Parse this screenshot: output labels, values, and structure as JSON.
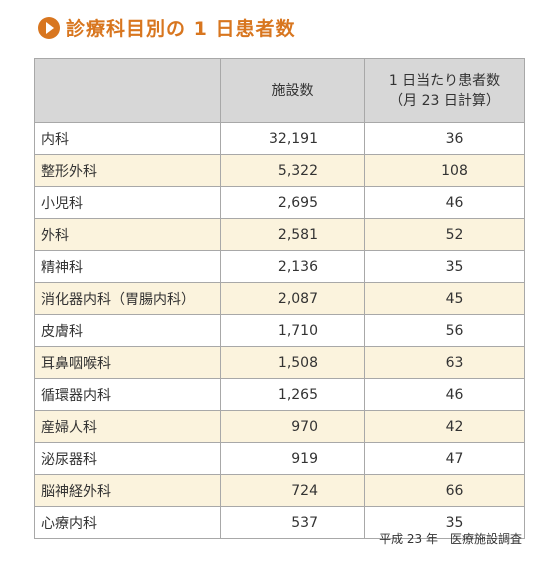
{
  "heading": {
    "title": "診療科目別の 1 日患者数",
    "icon": "play-circle-icon",
    "accent_color": "#d8761f"
  },
  "table": {
    "columns": [
      "",
      "施設数",
      "1 日当たり患者数",
      "（月 23 日計算）"
    ],
    "rows": [
      {
        "department": "内科",
        "facilities": "32,191",
        "patients": "36"
      },
      {
        "department": "整形外科",
        "facilities": "5,322",
        "patients": "108"
      },
      {
        "department": "小児科",
        "facilities": "2,695",
        "patients": "46"
      },
      {
        "department": "外科",
        "facilities": "2,581",
        "patients": "52"
      },
      {
        "department": "精神科",
        "facilities": "2,136",
        "patients": "35"
      },
      {
        "department": "消化器内科（胃腸内科）",
        "facilities": "2,087",
        "patients": "45"
      },
      {
        "department": "皮膚科",
        "facilities": "1,710",
        "patients": "56"
      },
      {
        "department": "耳鼻咽喉科",
        "facilities": "1,508",
        "patients": "63"
      },
      {
        "department": "循環器内科",
        "facilities": "1,265",
        "patients": "46"
      },
      {
        "department": "産婦人科",
        "facilities": "970",
        "patients": "42"
      },
      {
        "department": "泌尿器科",
        "facilities": "919",
        "patients": "47"
      },
      {
        "department": "脳神経外科",
        "facilities": "724",
        "patients": "66"
      },
      {
        "department": "心療内科",
        "facilities": "537",
        "patients": "35"
      }
    ],
    "header_bg": "#d7d7d7",
    "alt_row_bg": "#fbf3dd"
  },
  "source": "平成 23 年　医療施設調査"
}
